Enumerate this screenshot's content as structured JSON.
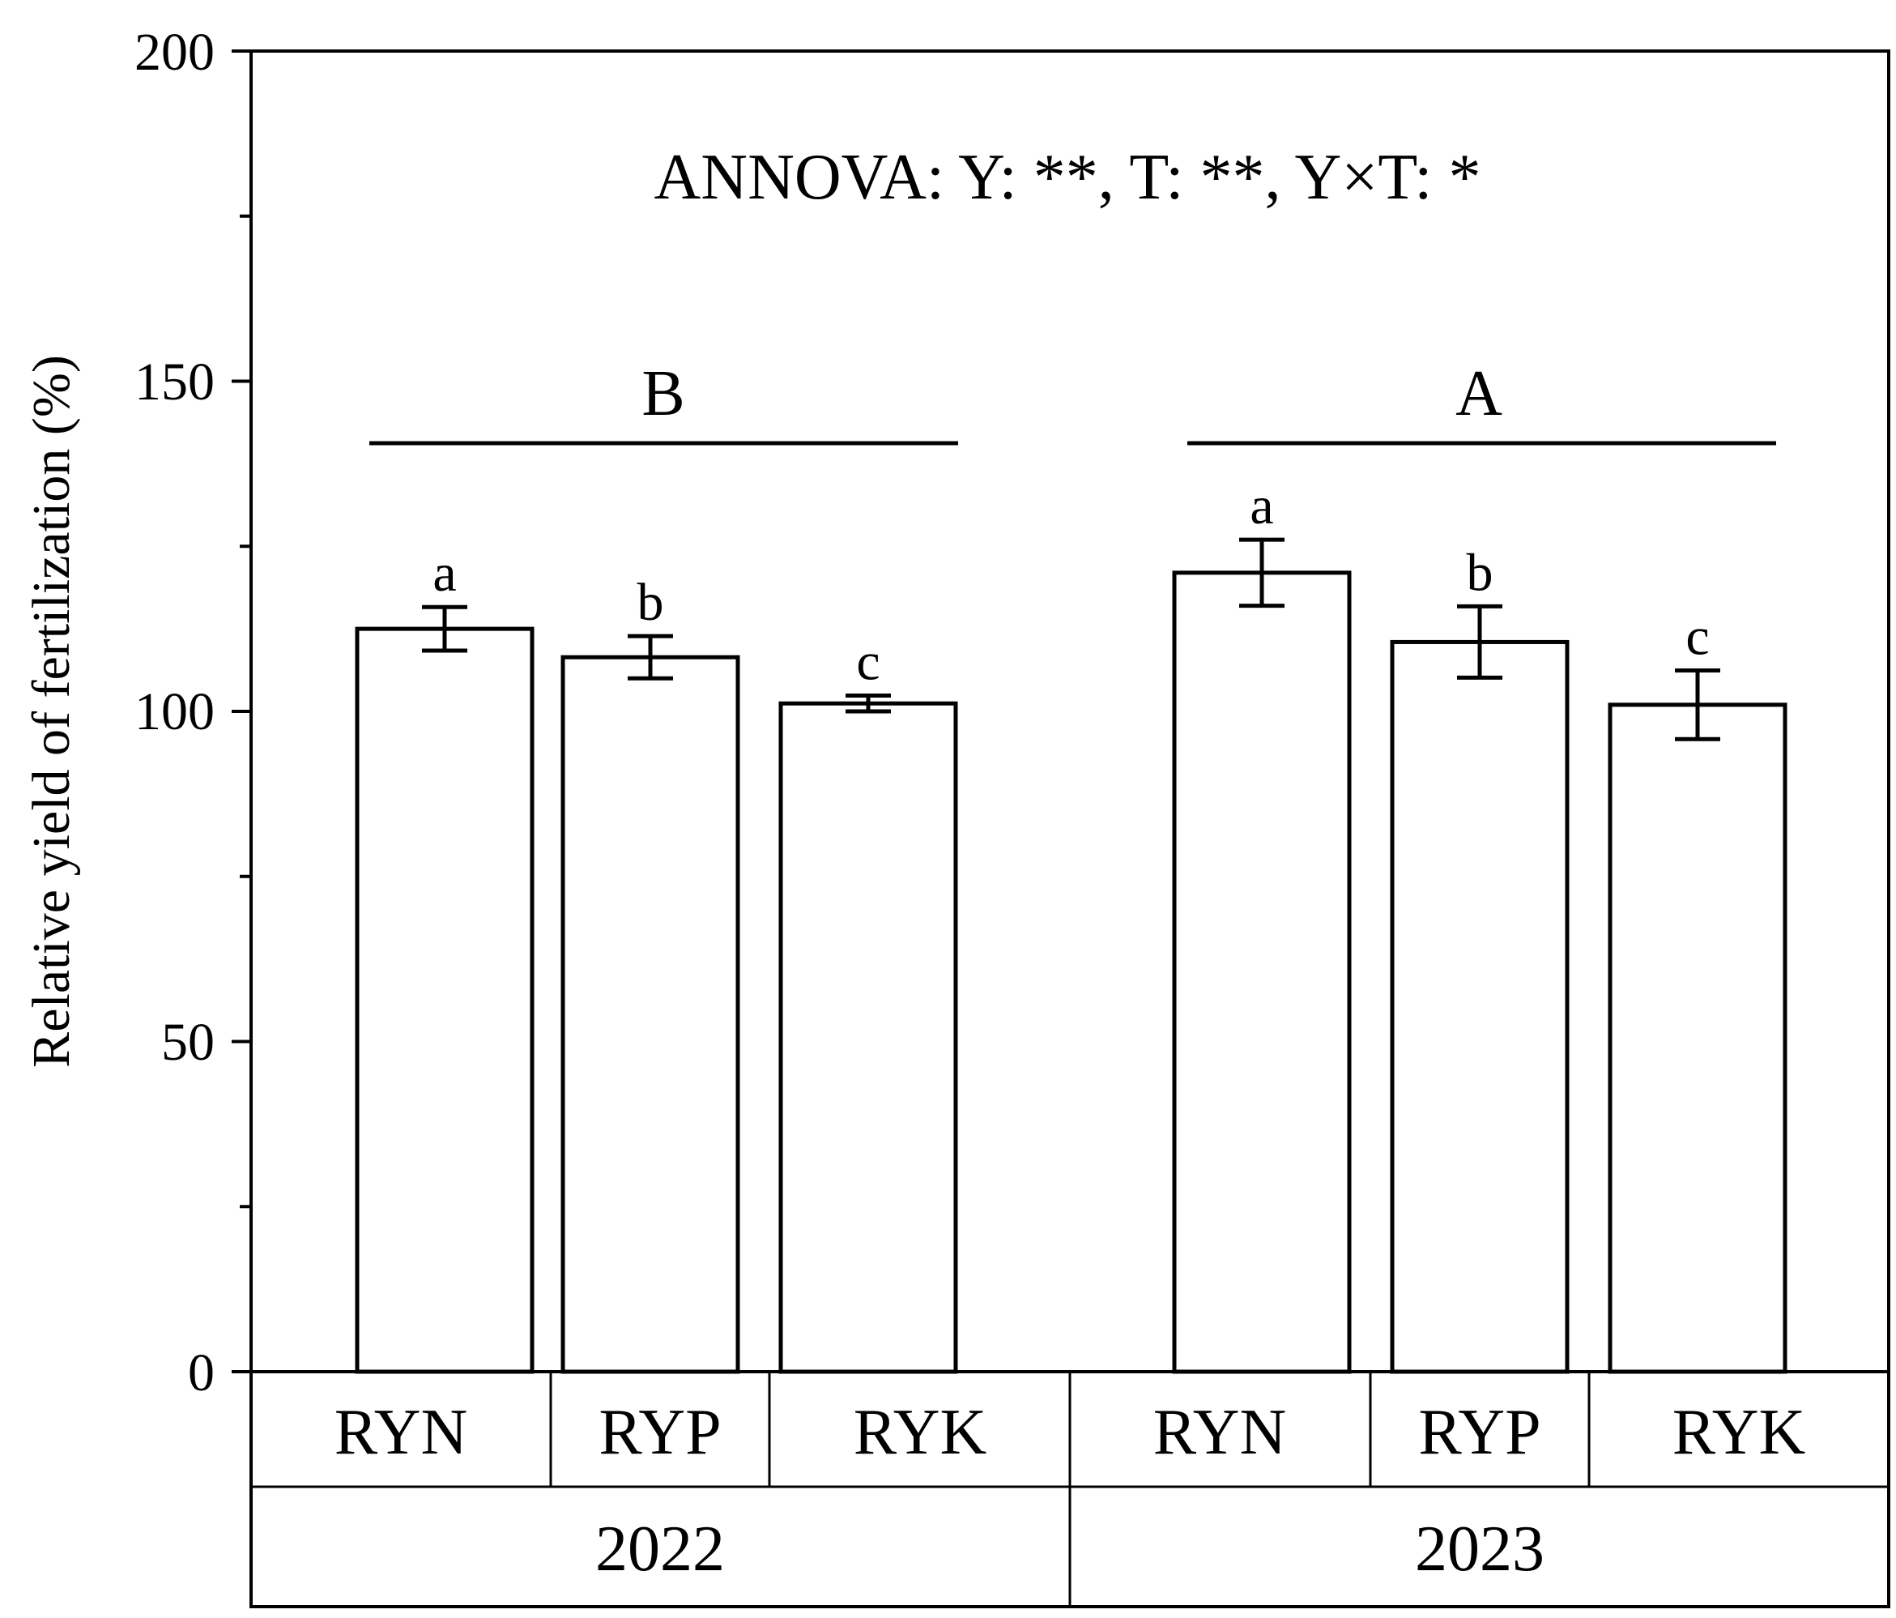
{
  "chart_data": {
    "type": "bar",
    "ylabel": "Relative yield of fertilization (%)",
    "ylim": [
      0,
      200
    ],
    "yticks": [
      "0",
      "50",
      "100",
      "150",
      "200"
    ],
    "annotation": "ANNOVA: Y: **, T: **, Y×T: *",
    "groups": [
      {
        "year": "2022",
        "group_letter": "B",
        "categories": [
          "RYN",
          "RYP",
          "RYK"
        ],
        "values": [
          112.5,
          108.2,
          101.2
        ],
        "errors": [
          3.3,
          3.2,
          1.2
        ],
        "letters": [
          "a",
          "b",
          "c"
        ]
      },
      {
        "year": "2023",
        "group_letter": "A",
        "categories": [
          "RYN",
          "RYP",
          "RYK"
        ],
        "values": [
          121.0,
          110.5,
          101.0
        ],
        "errors": [
          5.0,
          5.4,
          5.2
        ],
        "letters": [
          "a",
          "b",
          "c"
        ]
      }
    ],
    "bar_fill": "#ffffff",
    "bar_stroke": "#000000",
    "grid": false
  }
}
